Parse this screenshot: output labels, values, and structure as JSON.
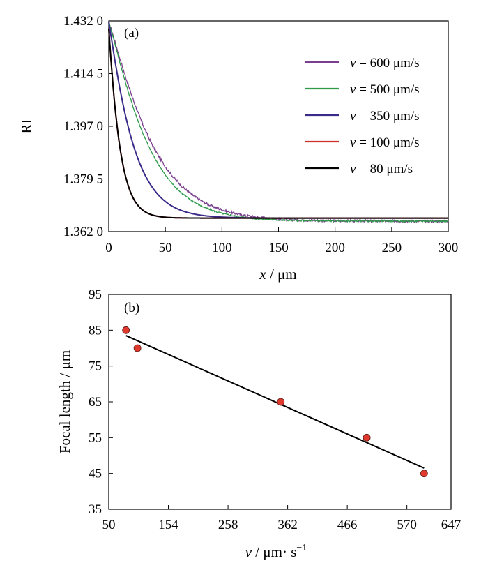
{
  "chart_data": [
    {
      "type": "line",
      "panel_label": "(a)",
      "xlabel": {
        "var": "x",
        "unit": " / μm"
      },
      "ylabel": "RI",
      "xlim": [
        0,
        300
      ],
      "ylim": [
        1.362,
        1.432
      ],
      "x_ticks": [
        0,
        50,
        100,
        150,
        200,
        250,
        300
      ],
      "x_tick_labels": [
        "0",
        "50",
        "100",
        "150",
        "200",
        "250",
        "300"
      ],
      "y_ticks": [
        1.362,
        1.3795,
        1.397,
        1.4145,
        1.432
      ],
      "y_tick_labels": [
        "1.362 0",
        "1.379 5",
        "1.397 0",
        "1.414 5",
        "1.432 0"
      ],
      "series": [
        {
          "name": "600",
          "legend_var": "v",
          "legend_text": " = 600 μm/s",
          "color": "#7a3f8f",
          "y0": 1.4315,
          "y_inf": 1.3655,
          "decay": 40,
          "power": 1.15,
          "noise": 0.0004
        },
        {
          "name": "500",
          "legend_var": "v",
          "legend_text": " = 500 μm/s",
          "color": "#2e9a4a",
          "y0": 1.4315,
          "y_inf": 1.3655,
          "decay": 36,
          "power": 1.15,
          "noise": 0.00025
        },
        {
          "name": "350",
          "legend_var": "v",
          "legend_text": " = 350 μm/s",
          "color": "#3a2a8a",
          "y0": 1.4315,
          "y_inf": 1.3665,
          "decay": 22,
          "power": 1.1,
          "noise": 0.0
        },
        {
          "name": "100",
          "legend_var": "v",
          "legend_text": " = 100 μm/s",
          "color": "#d03028",
          "y0": 1.4295,
          "y_inf": 1.3665,
          "decay": 10,
          "power": 1.05,
          "noise": 0.0
        },
        {
          "name": "80",
          "legend_var": "v",
          "legend_text": " = 80 μm/s",
          "color": "#000000",
          "y0": 1.4295,
          "y_inf": 1.3665,
          "decay": 10,
          "power": 1.05,
          "noise": 0.0
        }
      ]
    },
    {
      "type": "scatter",
      "panel_label": "(b)",
      "xlabel": {
        "var": "v",
        "unit": " / μm· s",
        "sup": "−1"
      },
      "ylabel": "Focal  length / μm",
      "xlim": [
        50,
        647
      ],
      "ylim": [
        35,
        95
      ],
      "x_ticks": [
        50,
        154,
        258,
        362,
        466,
        570,
        647
      ],
      "x_tick_labels": [
        "50",
        "154",
        "258",
        "362",
        "466",
        "570",
        "647"
      ],
      "y_ticks": [
        35,
        45,
        55,
        65,
        75,
        85,
        95
      ],
      "y_tick_labels": [
        "35",
        "45",
        "55",
        "65",
        "75",
        "85",
        "95"
      ],
      "points": [
        {
          "x": 80,
          "y": 85
        },
        {
          "x": 100,
          "y": 80
        },
        {
          "x": 350,
          "y": 65
        },
        {
          "x": 500,
          "y": 55
        },
        {
          "x": 600,
          "y": 45
        }
      ],
      "fit_line": {
        "x": [
          80,
          600
        ],
        "y": [
          83.5,
          46.5
        ]
      },
      "point_color": "#e03a2e"
    }
  ]
}
